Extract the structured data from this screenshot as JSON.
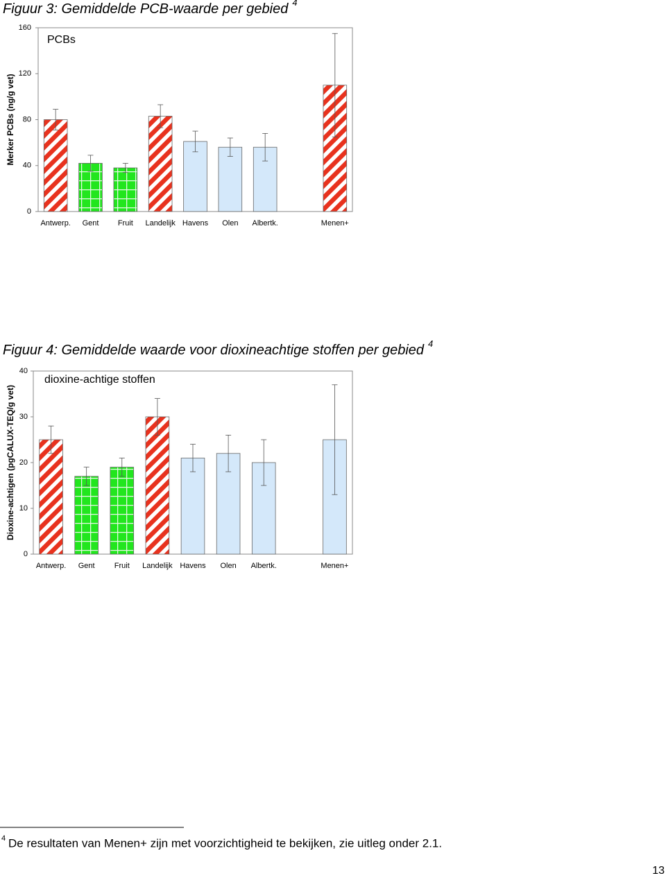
{
  "chart_data": [
    {
      "type": "bar",
      "title": "Figuur 3: Gemiddelde PCB-waarde per gebied",
      "title_note": "4",
      "y_label": "Merker PCBs (ng/g vet)",
      "categories": [
        "Antwerp.",
        "Gent",
        "Fruit",
        "Landelijk",
        "Havens",
        "Olen",
        "Albertk.",
        null,
        "Menen+"
      ],
      "series": [
        {
          "name": "PCBs",
          "values": [
            80,
            42,
            38,
            83,
            61,
            56,
            56,
            null,
            110
          ],
          "errors": [
            9,
            7,
            4,
            10,
            9,
            8,
            12,
            null,
            45
          ]
        }
      ],
      "colors": [
        "#e8321e",
        "#22e61e",
        "#22e61e",
        "#e8321e",
        "#d4e8fa",
        "#d4e8fa",
        "#d4e8fa",
        null,
        "#e8321e"
      ],
      "patterns": [
        "hatch",
        "check",
        "check",
        "hatch",
        "solid",
        "solid",
        "solid",
        null,
        "hatch"
      ],
      "ylim": [
        0,
        160
      ],
      "yticks": [
        0,
        40,
        80,
        120,
        160
      ],
      "grid": false
    },
    {
      "type": "bar",
      "title": "Figuur 4: Gemiddelde waarde voor dioxineachtige stoffen per gebied",
      "title_note": "4",
      "y_label": "Dioxine-achtigen (pgCALUX-TEQ/g vet)",
      "categories": [
        "Antwerp.",
        "Gent",
        "Fruit",
        "Landelijk",
        "Havens",
        "Olen",
        "Albertk.",
        null,
        "Menen+"
      ],
      "series": [
        {
          "name": "dioxine-achtige stoffen",
          "values": [
            25,
            17,
            19,
            30,
            21,
            22,
            20,
            null,
            25
          ],
          "errors": [
            3,
            2,
            2,
            4,
            3,
            4,
            5,
            null,
            12
          ]
        }
      ],
      "colors": [
        "#e8321e",
        "#22e61e",
        "#22e61e",
        "#e8321e",
        "#d4e8fa",
        "#d4e8fa",
        "#d4e8fa",
        null,
        "#d4e8fa"
      ],
      "patterns": [
        "hatch",
        "check",
        "check",
        "hatch",
        "solid",
        "solid",
        "solid",
        null,
        "solid"
      ],
      "ylim": [
        0,
        40
      ],
      "yticks": [
        0,
        10,
        20,
        30,
        40
      ],
      "grid": false
    }
  ],
  "footnote": {
    "marker": "4",
    "text": "De resultaten van Menen+ zijn met voorzichtigheid te bekijken, zie uitleg onder 2.1."
  },
  "page_number": "13"
}
